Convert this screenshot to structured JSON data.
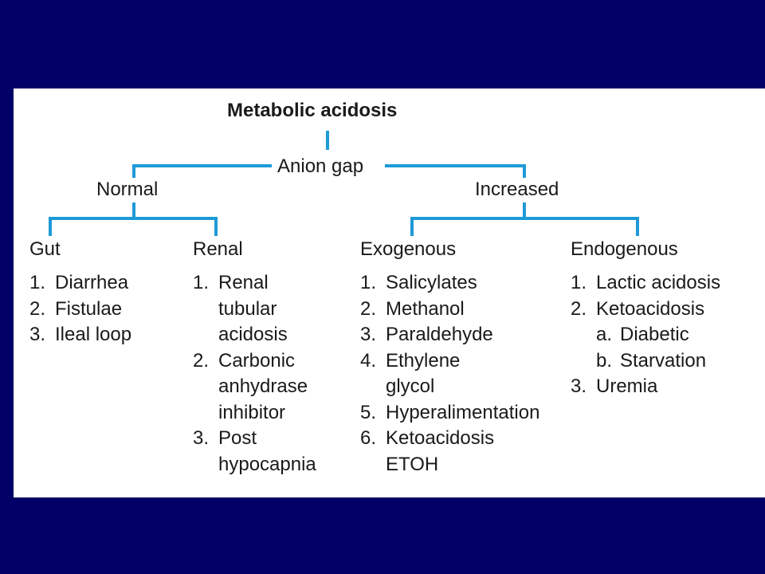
{
  "colors": {
    "background": "#000066",
    "panel": "#ffffff",
    "connector": "#1e9ad6",
    "text": "#1a1a1a"
  },
  "title": "Metabolic acidosis",
  "decision": "Anion gap",
  "branches": {
    "normal": "Normal",
    "increased": "Increased"
  },
  "gut": {
    "heading": "Gut",
    "items": [
      {
        "num": "1.",
        "text": "Diarrhea"
      },
      {
        "num": "2.",
        "text": "Fistulae"
      },
      {
        "num": "3.",
        "text": "Ileal loop"
      }
    ]
  },
  "renal": {
    "heading": "Renal",
    "items": [
      {
        "num": "1.",
        "lines": [
          "Renal",
          "tubular",
          "acidosis"
        ]
      },
      {
        "num": "2.",
        "lines": [
          "Carbonic",
          "anhydrase",
          "inhibitor"
        ]
      },
      {
        "num": "3.",
        "lines": [
          "Post",
          "hypocapnia"
        ]
      }
    ]
  },
  "exogenous": {
    "heading": "Exogenous",
    "items": [
      {
        "num": "1.",
        "lines": [
          "Salicylates"
        ]
      },
      {
        "num": "2.",
        "lines": [
          "Methanol"
        ]
      },
      {
        "num": "3.",
        "lines": [
          "Paraldehyde"
        ]
      },
      {
        "num": "4.",
        "lines": [
          "Ethylene",
          "glycol"
        ]
      },
      {
        "num": "5.",
        "lines": [
          "Hyperalimentation"
        ]
      },
      {
        "num": "6.",
        "lines": [
          "Ketoacidosis",
          "ETOH"
        ]
      }
    ]
  },
  "endogenous": {
    "heading": "Endogenous",
    "items": [
      {
        "num": "1.",
        "text": "Lactic acidosis"
      },
      {
        "num": "2.",
        "text": "Ketoacidosis",
        "sub": [
          {
            "num": "a.",
            "text": "Diabetic"
          },
          {
            "num": "b.",
            "text": "Starvation"
          }
        ]
      },
      {
        "num": "3.",
        "text": "Uremia"
      }
    ]
  }
}
